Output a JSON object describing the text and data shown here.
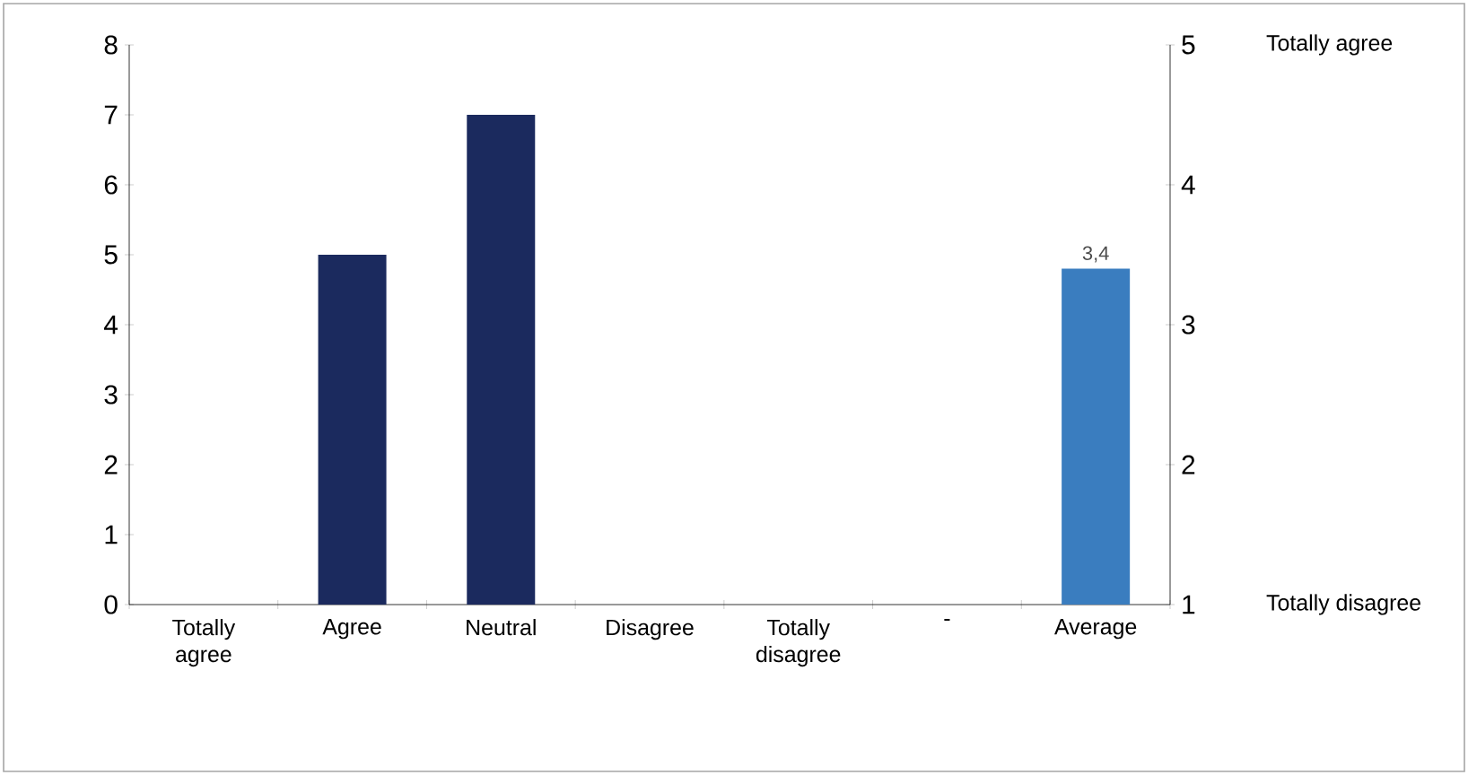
{
  "chart_data": {
    "type": "bar",
    "categories": [
      "Totally agree",
      "Agree",
      "Neutral",
      "Disagree",
      "Totally disagree",
      "-",
      "Average"
    ],
    "series": [
      {
        "color": "#1b2a5e",
        "values": [
          0,
          5,
          7,
          0,
          0,
          null,
          null
        ]
      },
      {
        "color": "#3a7dbf",
        "axis": "y2",
        "values": [
          null,
          null,
          null,
          null,
          null,
          null,
          3.4
        ],
        "value_labels": [
          null,
          null,
          null,
          null,
          null,
          null,
          "3,4"
        ]
      }
    ],
    "ylim": [
      0,
      8
    ],
    "yticks": [
      0,
      1,
      2,
      3,
      4,
      5,
      6,
      7,
      8
    ],
    "y2lim": [
      1,
      5
    ],
    "y2ticks": [
      1,
      2,
      3,
      4,
      5
    ],
    "annotations": [
      "Totally agree",
      "Totally disagree"
    ],
    "grid": false
  }
}
